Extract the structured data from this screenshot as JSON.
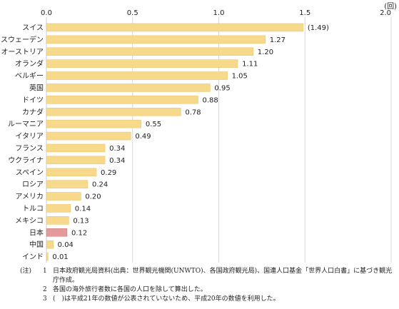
{
  "chart_data": {
    "type": "bar",
    "orientation": "horizontal",
    "unit": "(回)",
    "xlim": [
      0,
      2.0
    ],
    "x_ticks": [
      "0.0",
      "0.5",
      "1.0",
      "1.5",
      "2.0"
    ],
    "grid": true,
    "categories": [
      "スイス",
      "スウェーデン",
      "オーストリア",
      "オランダ",
      "ベルギー",
      "英国",
      "ドイツ",
      "カナダ",
      "ルーマニア",
      "イタリア",
      "フランス",
      "ウクライナ",
      "スペイン",
      "ロシア",
      "アメリカ",
      "トルコ",
      "メキシコ",
      "日本",
      "中国",
      "インド"
    ],
    "values": [
      1.49,
      1.27,
      1.2,
      1.11,
      1.05,
      0.95,
      0.88,
      0.78,
      0.55,
      0.49,
      0.34,
      0.34,
      0.29,
      0.24,
      0.2,
      0.14,
      0.13,
      0.12,
      0.04,
      0.01
    ],
    "value_labels": [
      "(1.49)",
      "1.27",
      "1.20",
      "1.11",
      "1.05",
      "0.95",
      "0.88",
      "0.78",
      "0.55",
      "0.49",
      "0.34",
      "0.34",
      "0.29",
      "0.24",
      "0.20",
      "0.14",
      "0.13",
      "0.12",
      "0.04",
      "0.01"
    ],
    "highlight_category": "日本",
    "colors": {
      "bar": "#f7d98b",
      "highlight": "#e39a98",
      "grid": "#d0d0d0"
    }
  },
  "notes": {
    "prefix": "(注)",
    "items": [
      {
        "num": "1",
        "text": "日本政府観光局資料(出典：世界観光機関(UNWTO)、各国政府観光局)、国連人口基金「世界人口白書」に基づき観光庁作成。"
      },
      {
        "num": "2",
        "text": "各国の海外旅行者数に各国の人口を除して算出した。"
      },
      {
        "num": "3",
        "text": "(　)は平成21年の数値が公表されていないため、平成20年の数値を利用した。"
      }
    ]
  }
}
